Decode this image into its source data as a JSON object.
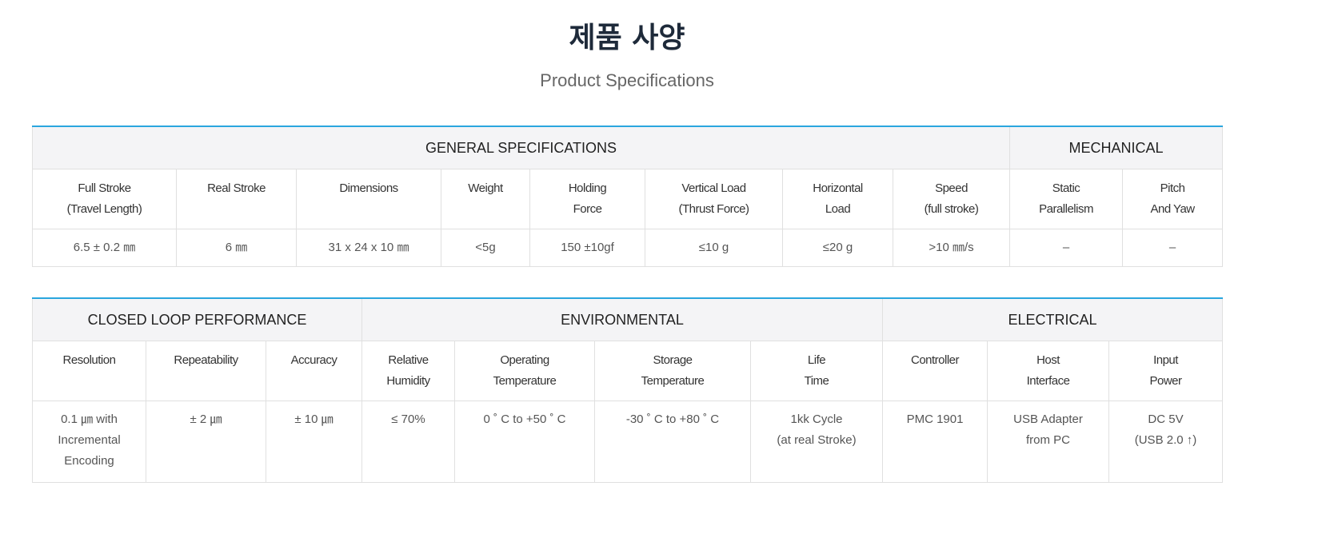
{
  "title": "제품 사양",
  "subtitle": "Product Specifications",
  "table1": {
    "groups": [
      {
        "label": "GENERAL SPECIFICATIONS",
        "span": 8
      },
      {
        "label": "MECHANICAL",
        "span": 2
      }
    ],
    "headers": [
      [
        "Full Stroke",
        "(Travel Length)"
      ],
      [
        "Real Stroke",
        ""
      ],
      [
        "Dimensions",
        ""
      ],
      [
        "Weight",
        ""
      ],
      [
        "Holding",
        "Force"
      ],
      [
        "Vertical Load",
        "(Thrust Force)"
      ],
      [
        "Horizontal",
        "Load"
      ],
      [
        "Speed",
        "(full stroke)"
      ],
      [
        "Static",
        "Parallelism"
      ],
      [
        "Pitch",
        "And Yaw"
      ]
    ],
    "values": [
      [
        "6.5 ± 0.2 ㎜",
        ""
      ],
      [
        "6 ㎜",
        ""
      ],
      [
        "31 x 24 x 10 ㎜",
        ""
      ],
      [
        "<5g",
        ""
      ],
      [
        "150 ±10gf",
        ""
      ],
      [
        "≤10 g",
        ""
      ],
      [
        "≤20 g",
        ""
      ],
      [
        ">10 ㎜/s",
        ""
      ],
      [
        "–",
        ""
      ],
      [
        "–",
        ""
      ]
    ]
  },
  "table2": {
    "groups": [
      {
        "label": "CLOSED LOOP PERFORMANCE",
        "span": 3
      },
      {
        "label": "ENVIRONMENTAL",
        "span": 4
      },
      {
        "label": "ELECTRICAL",
        "span": 3
      }
    ],
    "headers": [
      [
        "Resolution",
        ""
      ],
      [
        "Repeatability",
        ""
      ],
      [
        "Accuracy",
        ""
      ],
      [
        "Relative",
        "Humidity"
      ],
      [
        "Operating",
        "Temperature"
      ],
      [
        "Storage",
        "Temperature"
      ],
      [
        "Life",
        "Time"
      ],
      [
        "Controller",
        ""
      ],
      [
        "Host",
        "Interface"
      ],
      [
        "Input",
        "Power"
      ]
    ],
    "values": [
      [
        "0.1 ㎛ with",
        "Incremental",
        "Encoding"
      ],
      [
        "± 2 ㎛"
      ],
      [
        "± 10 ㎛"
      ],
      [
        "≤ 70%"
      ],
      [
        "0 ˚ C to +50 ˚ C"
      ],
      [
        "-30 ˚ C to +80 ˚ C"
      ],
      [
        "1kk Cycle",
        "(at real Stroke)"
      ],
      [
        "PMC 1901"
      ],
      [
        "USB Adapter",
        "from PC"
      ],
      [
        "DC 5V",
        "(USB 2.0 ↑)"
      ]
    ]
  }
}
